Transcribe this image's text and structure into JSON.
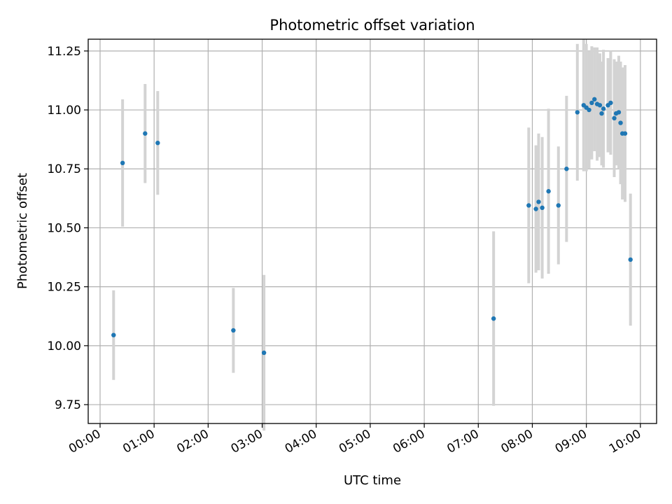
{
  "chart_data": {
    "type": "scatter",
    "title": "Photometric offset variation",
    "xlabel": "UTC time",
    "ylabel": "Photometric offset",
    "x_unit": "UTC hour of day",
    "xlim": [
      "00:00",
      "10:00"
    ],
    "ylim": [
      9.67,
      11.3
    ],
    "x_ticks": [
      "00:00",
      "01:00",
      "02:00",
      "03:00",
      "04:00",
      "05:00",
      "06:00",
      "07:00",
      "08:00",
      "09:00",
      "10:00"
    ],
    "y_ticks": [
      "9.75",
      "10.00",
      "10.25",
      "10.50",
      "10.75",
      "11.00",
      "11.25"
    ],
    "grid": true,
    "marker_color": "#1f77b4",
    "errorbar_color": "#d3d3d3",
    "points": [
      {
        "time": "00:15",
        "y": 10.045,
        "err": 0.19
      },
      {
        "time": "00:25",
        "y": 10.775,
        "err": 0.27
      },
      {
        "time": "00:50",
        "y": 10.9,
        "err": 0.21
      },
      {
        "time": "01:04",
        "y": 10.86,
        "err": 0.22
      },
      {
        "time": "02:28",
        "y": 10.065,
        "err": 0.18
      },
      {
        "time": "03:02",
        "y": 9.97,
        "err": 0.33
      },
      {
        "time": "07:17",
        "y": 10.115,
        "err": 0.37
      },
      {
        "time": "07:56",
        "y": 10.595,
        "err": 0.33
      },
      {
        "time": "08:04",
        "y": 10.58,
        "err": 0.27
      },
      {
        "time": "08:07",
        "y": 10.61,
        "err": 0.29
      },
      {
        "time": "08:11",
        "y": 10.585,
        "err": 0.3
      },
      {
        "time": "08:18",
        "y": 10.655,
        "err": 0.35
      },
      {
        "time": "08:29",
        "y": 10.595,
        "err": 0.25
      },
      {
        "time": "08:38",
        "y": 10.75,
        "err": 0.31
      },
      {
        "time": "08:50",
        "y": 10.99,
        "err": 0.29
      },
      {
        "time": "08:57",
        "y": 11.02,
        "err": 0.28
      },
      {
        "time": "09:00",
        "y": 11.01,
        "err": 0.27
      },
      {
        "time": "09:03",
        "y": 11.0,
        "err": 0.25
      },
      {
        "time": "09:06",
        "y": 11.03,
        "err": 0.24
      },
      {
        "time": "09:09",
        "y": 11.045,
        "err": 0.22
      },
      {
        "time": "09:12",
        "y": 11.025,
        "err": 0.24
      },
      {
        "time": "09:15",
        "y": 11.02,
        "err": 0.22
      },
      {
        "time": "09:17",
        "y": 10.985,
        "err": 0.22
      },
      {
        "time": "09:19",
        "y": 11.005,
        "err": 0.25
      },
      {
        "time": "09:24",
        "y": 11.02,
        "err": 0.2
      },
      {
        "time": "09:27",
        "y": 11.03,
        "err": 0.22
      },
      {
        "time": "09:31",
        "y": 10.965,
        "err": 0.25
      },
      {
        "time": "09:33",
        "y": 10.985,
        "err": 0.22
      },
      {
        "time": "09:36",
        "y": 10.99,
        "err": 0.24
      },
      {
        "time": "09:38",
        "y": 10.945,
        "err": 0.26
      },
      {
        "time": "09:40",
        "y": 10.9,
        "err": 0.28
      },
      {
        "time": "09:43",
        "y": 10.9,
        "err": 0.29
      },
      {
        "time": "09:49",
        "y": 10.365,
        "err": 0.28
      }
    ]
  }
}
